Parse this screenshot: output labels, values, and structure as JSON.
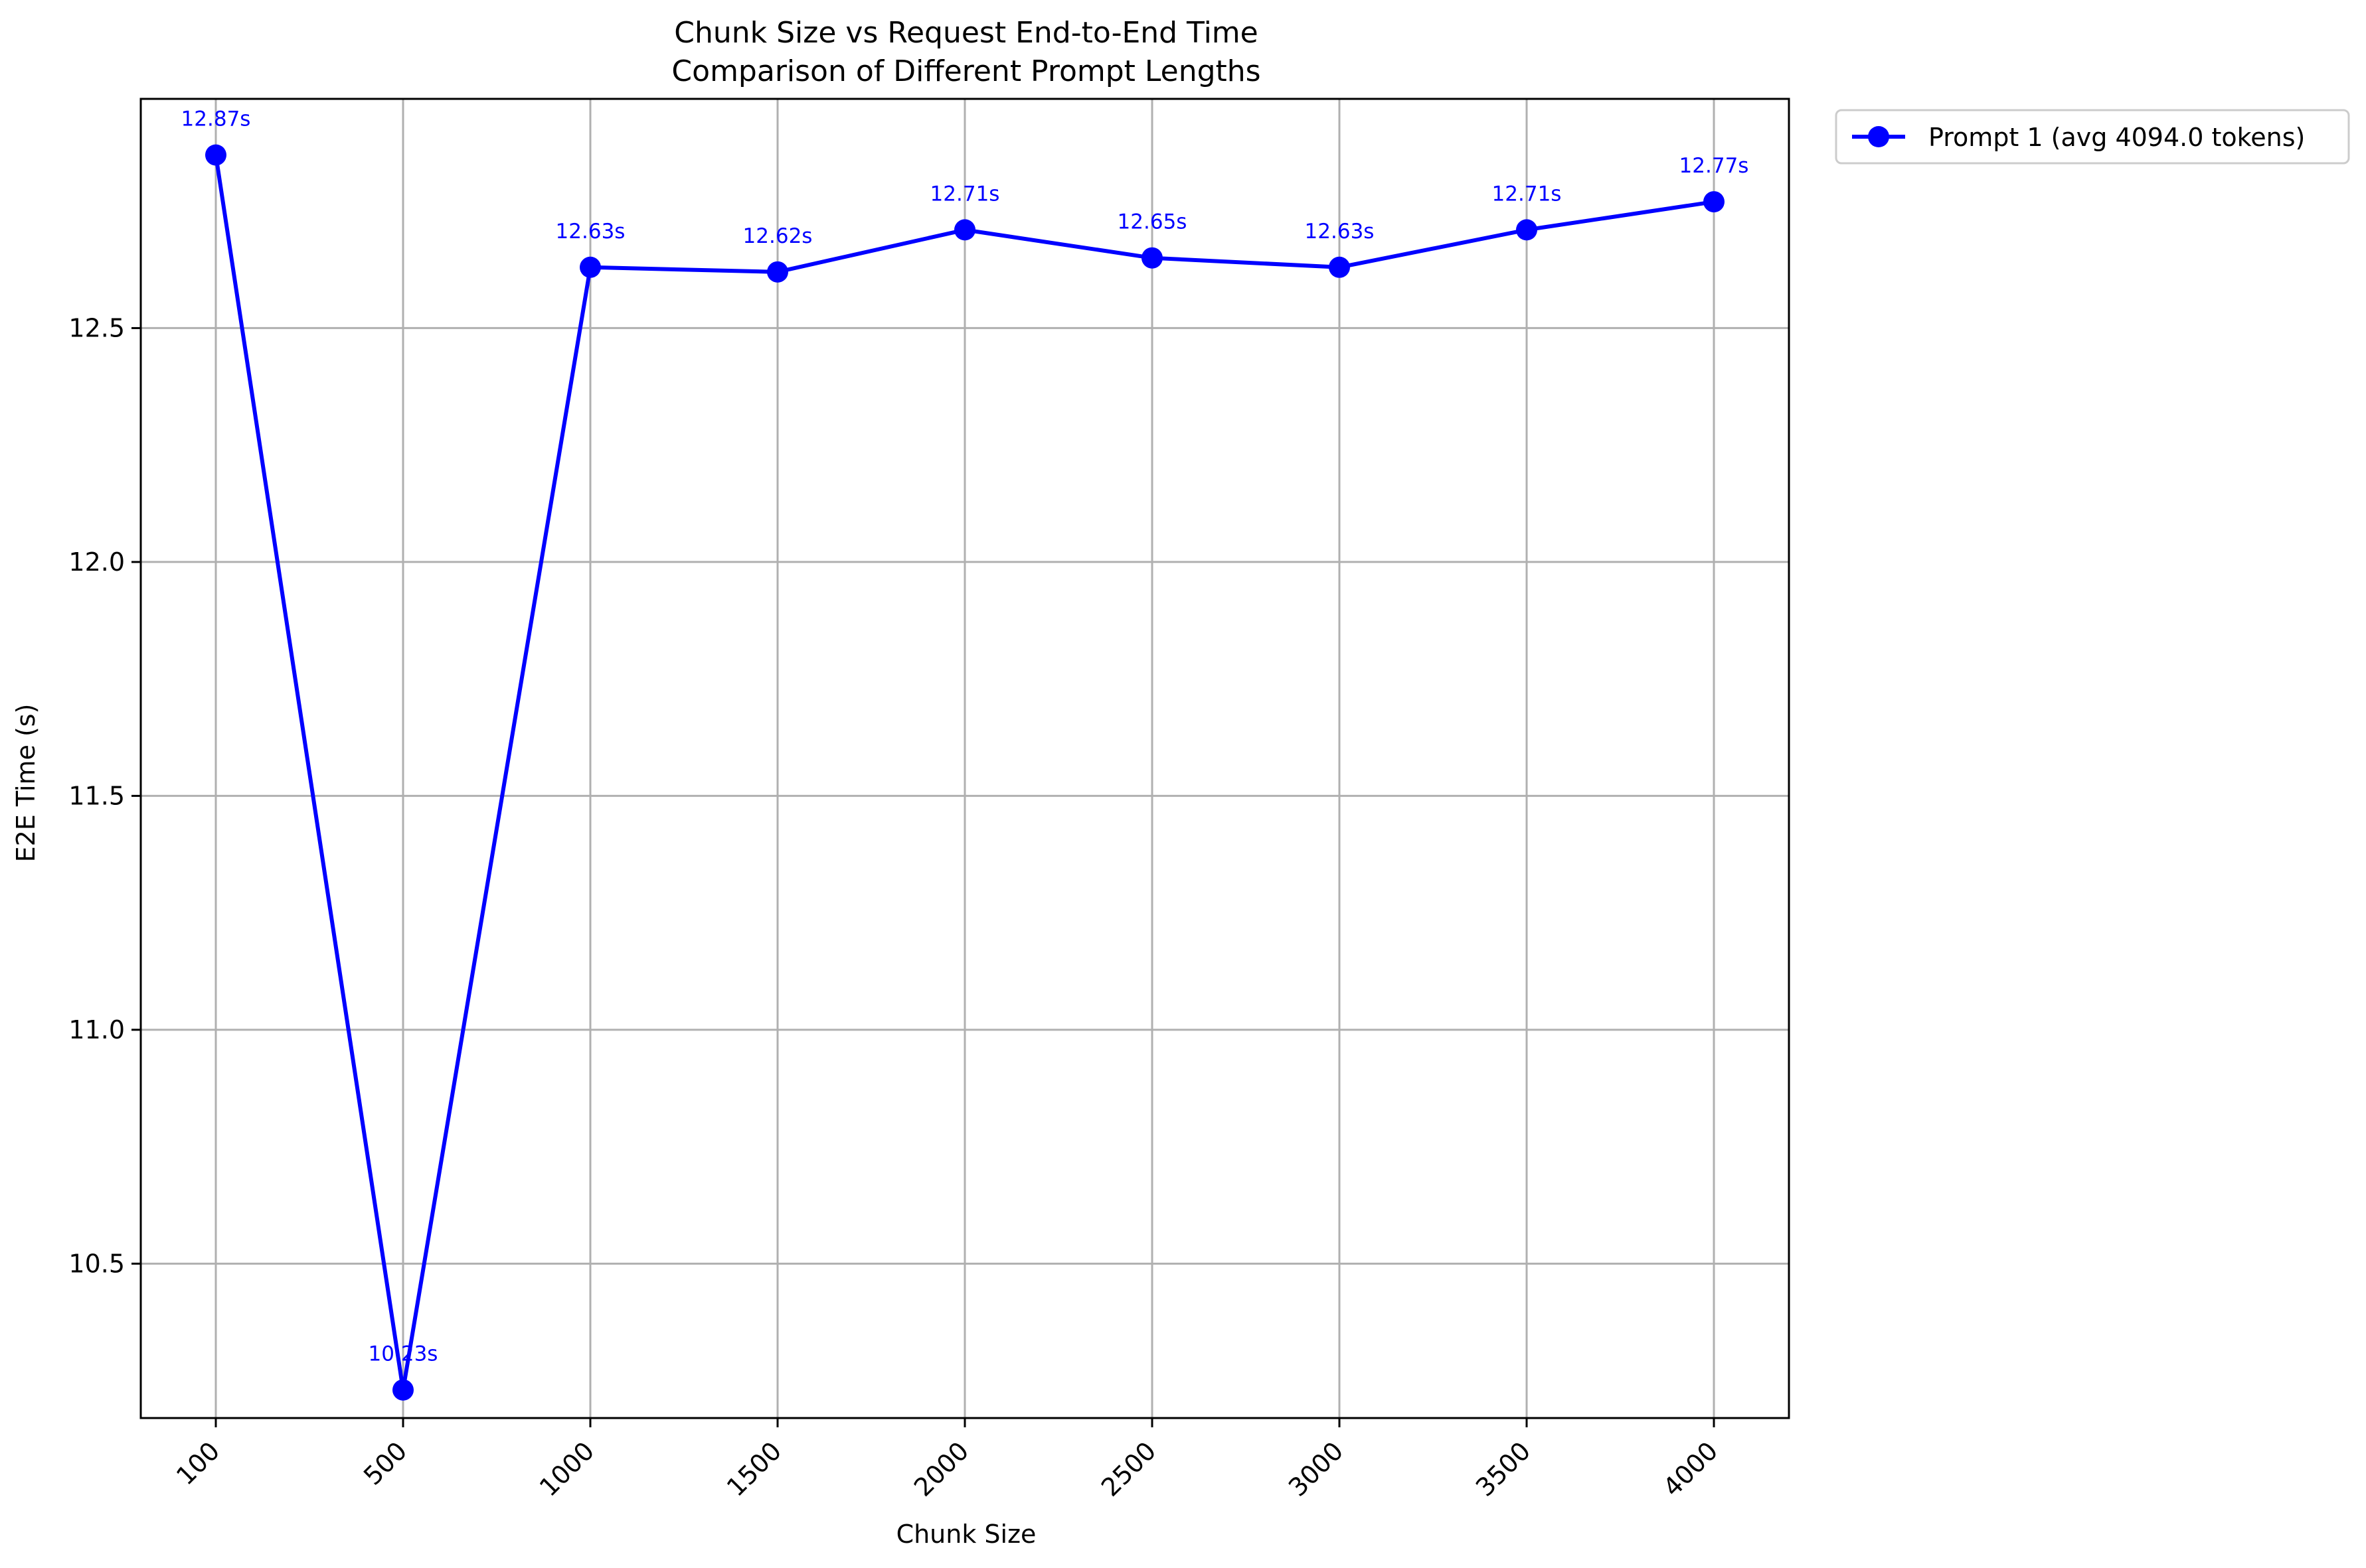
{
  "chart_data": {
    "type": "line",
    "title": "Chunk Size vs Request End-to-End Time",
    "subtitle": "Comparison of Different Prompt Lengths",
    "xlabel": "Chunk Size",
    "ylabel": "E2E Time (s)",
    "categories": [
      "100",
      "500",
      "1000",
      "1500",
      "2000",
      "2500",
      "3000",
      "3500",
      "4000"
    ],
    "ylim": [
      10.17,
      12.99
    ],
    "yticks": [
      "10.5",
      "11.0",
      "11.5",
      "12.0",
      "12.5"
    ],
    "grid": true,
    "legend_position": "outside-top-right",
    "series": [
      {
        "name": "Prompt 1 (avg 4094.0 tokens)",
        "color": "#0000ff",
        "marker": "circle",
        "values": [
          12.87,
          10.23,
          12.63,
          12.62,
          12.71,
          12.65,
          12.63,
          12.71,
          12.77
        ],
        "labels": [
          "12.87s",
          "10.23s",
          "12.63s",
          "12.62s",
          "12.71s",
          "12.65s",
          "12.63s",
          "12.71s",
          "12.77s"
        ]
      }
    ]
  }
}
